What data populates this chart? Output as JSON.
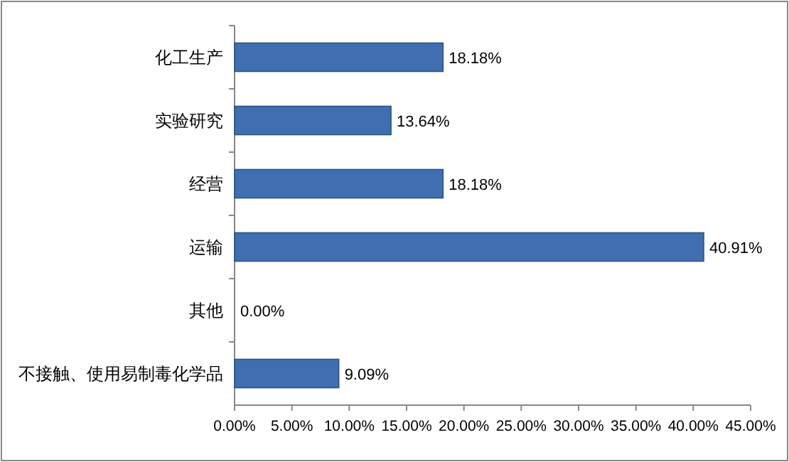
{
  "chart_data": {
    "type": "bar",
    "orientation": "horizontal",
    "categories": [
      "化工生产",
      "实验研究",
      "经营",
      "运输",
      "其他",
      "不接触、使用易制毒化学品"
    ],
    "values": [
      18.18,
      13.64,
      18.18,
      40.91,
      0,
      9.09
    ],
    "value_labels": [
      "18.18%",
      "13.64%",
      "18.18%",
      "40.91%",
      "0.00%",
      "9.09%"
    ],
    "color": "#3f6fb0",
    "xlim": [
      0,
      45
    ],
    "xticks": [
      {
        "value": 0,
        "label": "0.00%"
      },
      {
        "value": 5,
        "label": "5.00%"
      },
      {
        "value": 10,
        "label": "10.00%"
      },
      {
        "value": 15,
        "label": "15.00%"
      },
      {
        "value": 20,
        "label": "20.00%"
      },
      {
        "value": 25,
        "label": "25.00%"
      },
      {
        "value": 30,
        "label": "30.00%"
      },
      {
        "value": 35,
        "label": "35.00%"
      },
      {
        "value": 40,
        "label": "40.00%"
      },
      {
        "value": 45,
        "label": "45.00%"
      }
    ],
    "grid": false
  }
}
